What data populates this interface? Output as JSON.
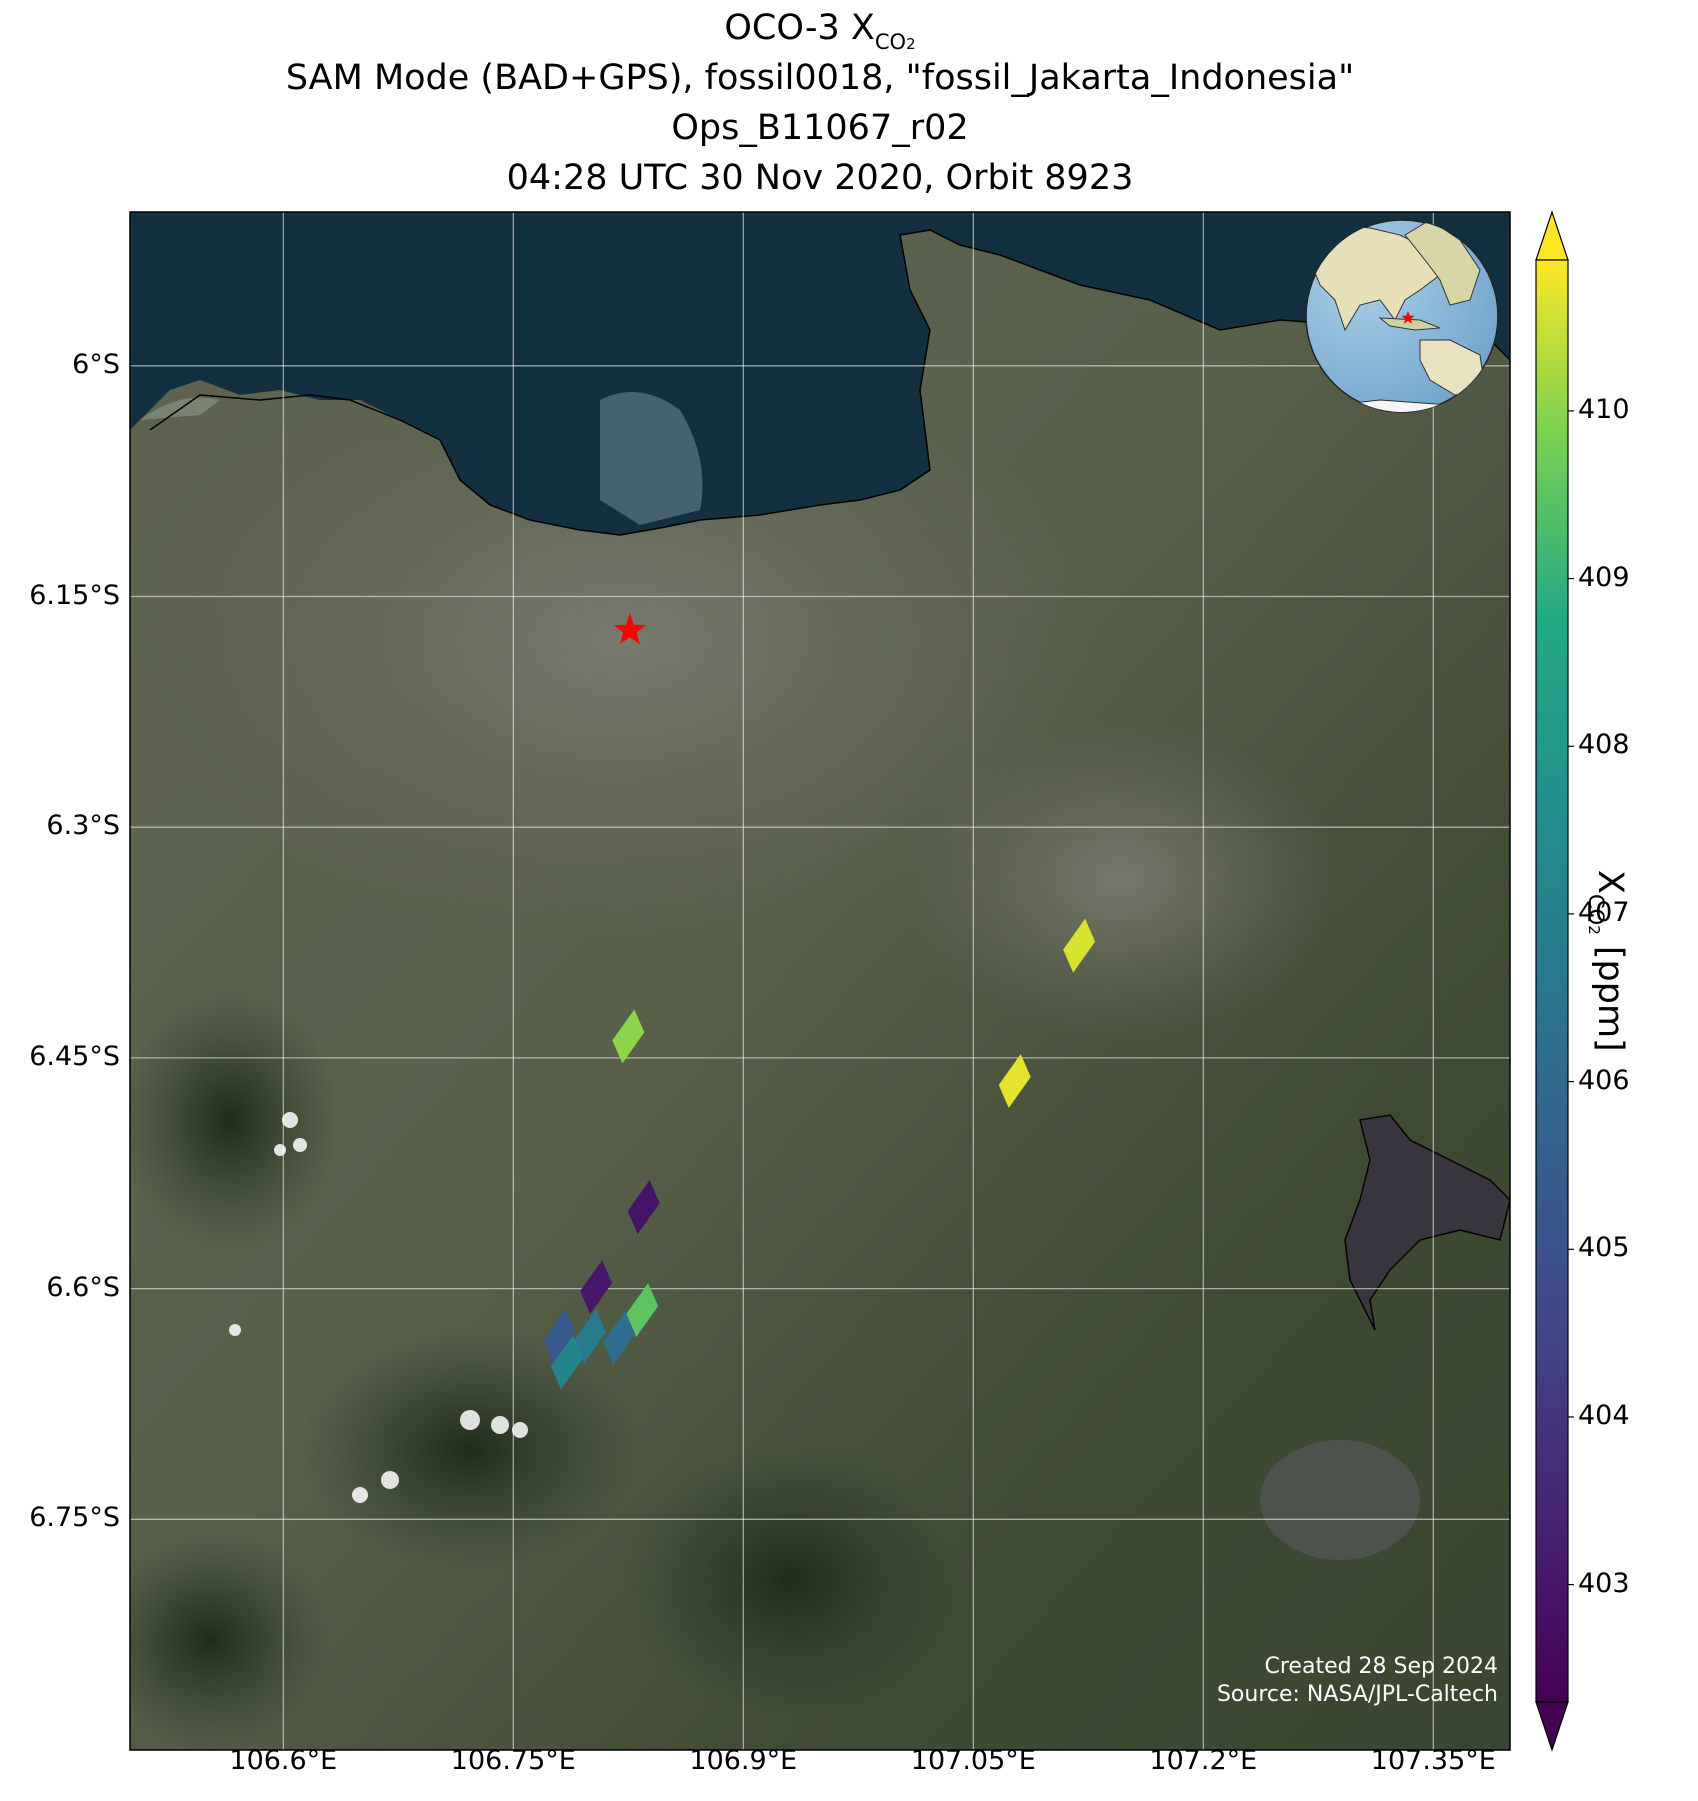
{
  "title": {
    "line1_main": "OCO-3 X",
    "line1_sub": "CO",
    "line1_subsub": "2",
    "line2": "SAM Mode (BAD+GPS), fossil0018, \"fossil_Jakarta_Indonesia\"",
    "line3": "Ops_B11067_r02",
    "line4": "04:28 UTC 30 Nov 2020, Orbit 8923"
  },
  "map": {
    "lon_range": [
      106.5,
      107.4
    ],
    "lat_range": [
      -6.9,
      -5.9
    ],
    "lon_ticks": [
      {
        "value": 106.6,
        "label": "106.6°E"
      },
      {
        "value": 106.75,
        "label": "106.75°E"
      },
      {
        "value": 106.9,
        "label": "106.9°E"
      },
      {
        "value": 107.05,
        "label": "107.05°E"
      },
      {
        "value": 107.2,
        "label": "107.2°E"
      },
      {
        "value": 107.35,
        "label": "107.35°E"
      }
    ],
    "lat_ticks": [
      {
        "value": -6.0,
        "label": "6°S"
      },
      {
        "value": -6.15,
        "label": "6.15°S"
      },
      {
        "value": -6.3,
        "label": "6.3°S"
      },
      {
        "value": -6.45,
        "label": "6.45°S"
      },
      {
        "value": -6.6,
        "label": "6.6°S"
      },
      {
        "value": -6.75,
        "label": "6.75°S"
      }
    ],
    "target": {
      "lon": 106.826,
      "lat": -6.172,
      "icon": "red-star-icon",
      "color": "#ff0000"
    },
    "inset_globe": {
      "icon": "globe-icon",
      "marker": "red-star-icon"
    },
    "credit_line1": "Created 28 Sep 2024",
    "credit_line2": "Source: NASA/JPL-Caltech"
  },
  "chart_data": {
    "type": "scatter",
    "title": "OCO-3 XCO2",
    "xlabel": "",
    "ylabel": "",
    "value_label": "XCO2 [ppm]",
    "points": [
      {
        "lon": 106.825,
        "lat": -6.436,
        "xco2": 410.0
      },
      {
        "lon": 107.119,
        "lat": -6.377,
        "xco2": 410.6
      },
      {
        "lon": 107.077,
        "lat": -6.465,
        "xco2": 410.7
      },
      {
        "lon": 106.835,
        "lat": -6.547,
        "xco2": 402.9
      },
      {
        "lon": 106.804,
        "lat": -6.599,
        "xco2": 403.0
      },
      {
        "lon": 106.834,
        "lat": -6.614,
        "xco2": 409.5
      },
      {
        "lon": 106.78,
        "lat": -6.631,
        "xco2": 405.3
      },
      {
        "lon": 106.8,
        "lat": -6.631,
        "xco2": 406.7
      },
      {
        "lon": 106.819,
        "lat": -6.632,
        "xco2": 406.2
      },
      {
        "lon": 106.785,
        "lat": -6.648,
        "xco2": 407.2
      }
    ],
    "colorbar": {
      "colormap": "viridis",
      "vmin": 402.3,
      "vmax": 410.9,
      "ticks": [
        403,
        404,
        405,
        406,
        407,
        408,
        409,
        410
      ],
      "label_main": "X",
      "label_sub": "CO",
      "label_subsub": "2",
      "label_units": " [ppm]"
    }
  }
}
